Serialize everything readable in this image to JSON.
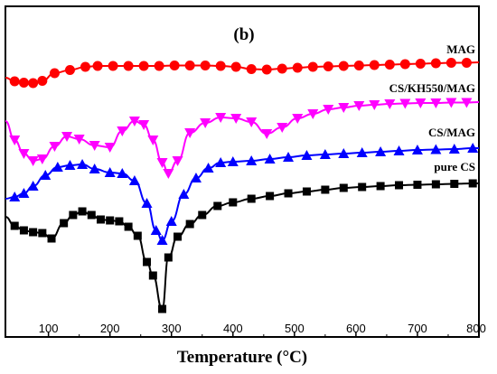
{
  "chart_data": {
    "type": "line",
    "panel_label": "(b)",
    "xlabel": "Temperature (°C)",
    "ylabel": "",
    "xlim": [
      30,
      800
    ],
    "y_ticks_shown": false,
    "x_ticks": [
      100,
      200,
      300,
      400,
      500,
      600,
      700,
      800
    ],
    "grid": false,
    "legend": "inline labels above each curve",
    "series": [
      {
        "name": "MAG",
        "color": "#ff0000",
        "marker": "circle",
        "points": [
          [
            30,
            86
          ],
          [
            45,
            90
          ],
          [
            60,
            91.5
          ],
          [
            75,
            92
          ],
          [
            90,
            89.5
          ],
          [
            110,
            81
          ],
          [
            135,
            77.5
          ],
          [
            160,
            74
          ],
          [
            180,
            73
          ],
          [
            205,
            73
          ],
          [
            230,
            73
          ],
          [
            255,
            73
          ],
          [
            280,
            73
          ],
          [
            305,
            72.5
          ],
          [
            330,
            72.5
          ],
          [
            355,
            72.5
          ],
          [
            380,
            73
          ],
          [
            405,
            74
          ],
          [
            430,
            76.5
          ],
          [
            455,
            77
          ],
          [
            480,
            76
          ],
          [
            505,
            75
          ],
          [
            530,
            74
          ],
          [
            555,
            73.5
          ],
          [
            580,
            73
          ],
          [
            605,
            72.5
          ],
          [
            630,
            72
          ],
          [
            655,
            71.5
          ],
          [
            680,
            71
          ],
          [
            705,
            70.5
          ],
          [
            730,
            70
          ],
          [
            755,
            69.5
          ],
          [
            780,
            69.5
          ],
          [
            800,
            69
          ]
        ]
      },
      {
        "name": "CS/KH550/MAG",
        "color": "#ff00ff",
        "marker": "triangle-down",
        "points": [
          [
            30,
            134
          ],
          [
            45,
            155
          ],
          [
            60,
            170
          ],
          [
            75,
            178
          ],
          [
            90,
            176
          ],
          [
            110,
            162
          ],
          [
            130,
            151
          ],
          [
            150,
            154
          ],
          [
            175,
            161
          ],
          [
            200,
            163
          ],
          [
            220,
            145
          ],
          [
            240,
            134
          ],
          [
            255,
            138
          ],
          [
            270,
            155
          ],
          [
            285,
            180
          ],
          [
            295,
            192
          ],
          [
            310,
            178
          ],
          [
            330,
            147
          ],
          [
            355,
            136
          ],
          [
            380,
            130
          ],
          [
            405,
            131
          ],
          [
            430,
            135
          ],
          [
            455,
            148
          ],
          [
            480,
            141
          ],
          [
            505,
            131
          ],
          [
            530,
            126
          ],
          [
            555,
            121
          ],
          [
            580,
            119
          ],
          [
            605,
            117
          ],
          [
            630,
            116
          ],
          [
            655,
            115
          ],
          [
            680,
            114.5
          ],
          [
            705,
            114
          ],
          [
            730,
            114
          ],
          [
            755,
            113.5
          ],
          [
            780,
            113.5
          ],
          [
            800,
            113
          ]
        ]
      },
      {
        "name": "CS/MAG",
        "color": "#0000ff",
        "marker": "triangle-up",
        "points": [
          [
            30,
            220
          ],
          [
            45,
            218
          ],
          [
            60,
            214
          ],
          [
            75,
            206
          ],
          [
            95,
            194
          ],
          [
            115,
            185
          ],
          [
            135,
            183
          ],
          [
            155,
            182
          ],
          [
            175,
            187
          ],
          [
            200,
            191
          ],
          [
            220,
            192
          ],
          [
            240,
            200
          ],
          [
            260,
            225
          ],
          [
            275,
            255
          ],
          [
            285,
            266
          ],
          [
            300,
            245
          ],
          [
            320,
            215
          ],
          [
            340,
            197
          ],
          [
            360,
            186
          ],
          [
            380,
            180
          ],
          [
            400,
            179
          ],
          [
            430,
            178
          ],
          [
            460,
            176
          ],
          [
            490,
            174
          ],
          [
            520,
            172
          ],
          [
            550,
            171
          ],
          [
            580,
            170
          ],
          [
            610,
            169
          ],
          [
            640,
            168
          ],
          [
            670,
            167
          ],
          [
            700,
            166
          ],
          [
            730,
            165.5
          ],
          [
            760,
            165
          ],
          [
            790,
            164
          ],
          [
            800,
            164
          ]
        ]
      },
      {
        "name": "pure CS",
        "color": "#000000",
        "marker": "square",
        "points": [
          [
            30,
            240
          ],
          [
            45,
            250
          ],
          [
            60,
            255
          ],
          [
            75,
            257
          ],
          [
            90,
            258
          ],
          [
            105,
            264
          ],
          [
            125,
            247
          ],
          [
            140,
            238
          ],
          [
            155,
            234
          ],
          [
            170,
            238
          ],
          [
            185,
            243
          ],
          [
            200,
            244
          ],
          [
            215,
            245
          ],
          [
            230,
            251
          ],
          [
            245,
            261
          ],
          [
            260,
            290
          ],
          [
            270,
            305
          ],
          [
            285,
            342
          ],
          [
            295,
            285
          ],
          [
            310,
            262
          ],
          [
            330,
            248
          ],
          [
            350,
            238
          ],
          [
            375,
            228
          ],
          [
            400,
            224
          ],
          [
            430,
            220
          ],
          [
            460,
            217
          ],
          [
            490,
            214
          ],
          [
            520,
            212
          ],
          [
            550,
            210
          ],
          [
            580,
            208
          ],
          [
            610,
            207
          ],
          [
            640,
            206
          ],
          [
            670,
            205
          ],
          [
            700,
            204.5
          ],
          [
            730,
            204
          ],
          [
            760,
            203.5
          ],
          [
            790,
            203
          ],
          [
            800,
            203
          ]
        ]
      }
    ]
  }
}
